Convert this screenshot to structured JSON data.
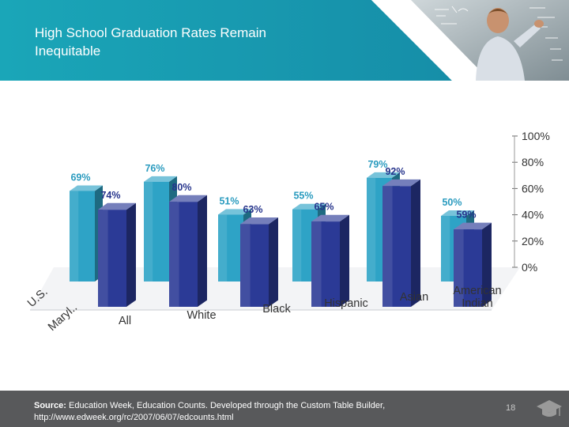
{
  "header": {
    "title_line1": "High School Graduation Rates Remain",
    "title_line2": "Inequitable",
    "band_color": "#1a9bb0",
    "image_icon": "teacher-at-chalkboard-photo"
  },
  "chart_data": {
    "type": "bar",
    "style": "3d-clustered",
    "categories": [
      "All",
      "White",
      "Black",
      "Hispanic",
      "Asian",
      "American Indian"
    ],
    "category_labels": [
      [
        "All"
      ],
      [
        "White"
      ],
      [
        "Black"
      ],
      [
        "Hispanic"
      ],
      [
        "Asian"
      ],
      [
        "American",
        "Indian"
      ]
    ],
    "series": [
      {
        "name": "U.S.",
        "values": [
          69,
          76,
          51,
          55,
          79,
          50
        ],
        "value_labels": [
          "69%",
          "76%",
          "51%",
          "55%",
          "79%",
          "50%"
        ],
        "color": "#2ea3c6"
      },
      {
        "name": "Maryl..",
        "values": [
          74,
          80,
          63,
          65,
          92,
          59
        ],
        "value_labels": [
          "74%",
          "80%",
          "63%",
          "65%",
          "92%",
          "59%"
        ],
        "color": "#2b3a96"
      }
    ],
    "ylim": [
      0,
      100
    ],
    "yticks": [
      "0%",
      "20%",
      "40%",
      "60%",
      "80%",
      "100%"
    ],
    "grid": false,
    "legend": "depth-axis-left"
  },
  "footer": {
    "source_label": "Source:",
    "source_text": " Education Week, Education Counts. Developed through the Custom Table Builder,",
    "source_url": "http://www.edweek.org/rc/2007/06/07/edcounts.html",
    "page_number": "18",
    "icon": "graduation-cap-icon"
  }
}
